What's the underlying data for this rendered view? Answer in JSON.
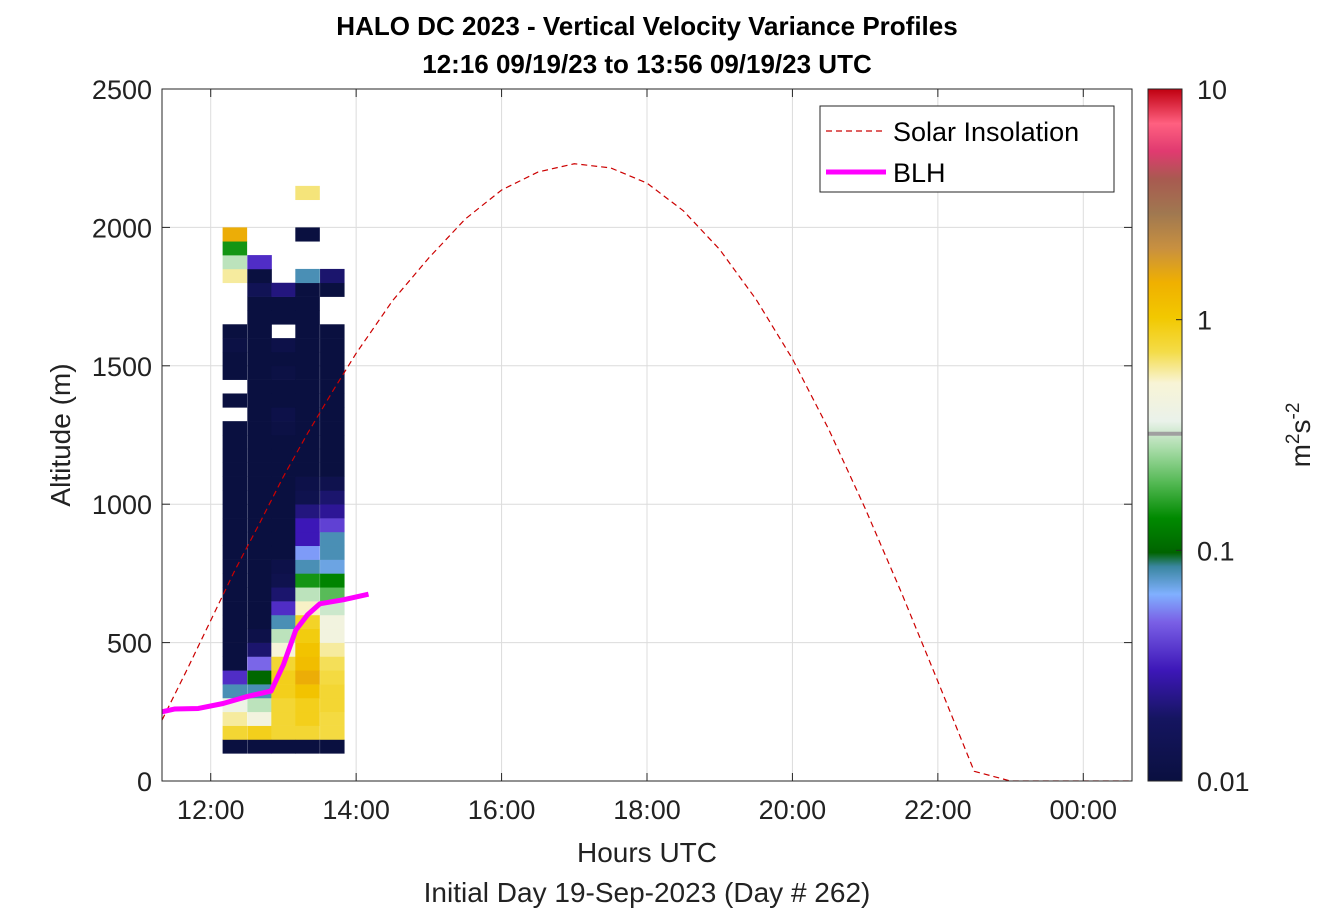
{
  "chart_data": {
    "type": "heatmap",
    "title": "HALO DC 2023 - Vertical Velocity Variance Profiles",
    "subtitle": "12:16 09/19/23 to 13:56 09/19/23  UTC",
    "xlabel": "Hours UTC",
    "xlabel2": "Initial Day 19-Sep-2023 (Day # 262)",
    "ylabel": "Altitude (m)",
    "xlim": [
      11.33,
      24.67
    ],
    "ylim": [
      0,
      2500
    ],
    "x_ticks": [
      12,
      14,
      16,
      18,
      20,
      22,
      24
    ],
    "x_tick_labels": [
      "12:00",
      "14:00",
      "16:00",
      "18:00",
      "20:00",
      "22:00",
      "00:00"
    ],
    "y_ticks": [
      0,
      500,
      1000,
      1500,
      2000,
      2500
    ],
    "y_tick_labels": [
      "0",
      "500",
      "1000",
      "1500",
      "2000",
      "2500"
    ],
    "grid": true,
    "legend_position": "top-right",
    "legend": [
      {
        "label": "Solar Insolation",
        "style": "dashed",
        "color": "#cc0000"
      },
      {
        "label": "BLH",
        "style": "solid",
        "color": "#ff00ff"
      }
    ],
    "colorbar": {
      "label": "m",
      "label_sup1": "2",
      "label_mid": "s",
      "label_sup2": "-2",
      "scale": "log",
      "range": [
        0.01,
        10
      ],
      "ticks": [
        0.01,
        0.1,
        1,
        10
      ],
      "tick_labels": [
        "0.01",
        "0.1",
        "1",
        "10"
      ],
      "colors": [
        [
          0.0,
          "#0a1040"
        ],
        [
          0.09,
          "#151560"
        ],
        [
          0.16,
          "#3d17b8"
        ],
        [
          0.23,
          "#7a60e6"
        ],
        [
          0.27,
          "#80b0ff"
        ],
        [
          0.31,
          "#3a86a0"
        ],
        [
          0.33,
          "#006400"
        ],
        [
          0.38,
          "#008a00"
        ],
        [
          0.43,
          "#52b852"
        ],
        [
          0.48,
          "#a8dca8"
        ],
        [
          0.52,
          "#eaf2ea"
        ],
        [
          0.575,
          "#f8f4d6"
        ],
        [
          0.62,
          "#f4dc48"
        ],
        [
          0.67,
          "#f2c800"
        ],
        [
          0.72,
          "#f0b000"
        ],
        [
          0.77,
          "#c89040"
        ],
        [
          0.82,
          "#a07850"
        ],
        [
          0.87,
          "#a85a50"
        ],
        [
          0.91,
          "#e03a70"
        ],
        [
          0.95,
          "#ff6080"
        ],
        [
          1.0,
          "#c00010"
        ]
      ],
      "marker_value": 0.32,
      "marker_color": "#a0a0a0"
    },
    "heatmap": {
      "time_bins": [
        12.33,
        12.67,
        13.0,
        13.33,
        13.67
      ],
      "bin_width_hours": 0.333,
      "alt_bin_m": 50,
      "columns": [
        {
          "x": 12.33,
          "cells": [
            [
              125,
              0.01
            ],
            [
              175,
              0.8
            ],
            [
              225,
              0.6
            ],
            [
              275,
              0.4
            ],
            [
              325,
              0.08
            ],
            [
              375,
              0.035
            ],
            [
              425,
              0.01
            ],
            [
              475,
              0.01
            ],
            [
              525,
              0.01
            ],
            [
              575,
              0.01
            ],
            [
              625,
              0.01
            ],
            [
              675,
              0.01
            ],
            [
              725,
              0.01
            ],
            [
              775,
              0.01
            ],
            [
              825,
              0.01
            ],
            [
              875,
              0.01
            ],
            [
              925,
              0.01
            ],
            [
              975,
              0.01
            ],
            [
              1025,
              0.01
            ],
            [
              1075,
              0.01
            ],
            [
              1125,
              0.01
            ],
            [
              1175,
              0.01
            ],
            [
              1225,
              0.01
            ],
            [
              1275,
              0.01
            ],
            [
              1375,
              0.01
            ],
            [
              1475,
              0.01
            ],
            [
              1525,
              0.01
            ],
            [
              1575,
              0.011
            ],
            [
              1625,
              0.01
            ],
            [
              1825,
              0.6
            ],
            [
              1875,
              0.3
            ],
            [
              1925,
              0.15
            ],
            [
              1975,
              1.5
            ]
          ]
        },
        {
          "x": 12.67,
          "cells": [
            [
              125,
              0.01
            ],
            [
              175,
              0.9
            ],
            [
              225,
              0.45
            ],
            [
              275,
              0.3
            ],
            [
              325,
              0.08
            ],
            [
              375,
              0.1
            ],
            [
              425,
              0.05
            ],
            [
              475,
              0.02
            ],
            [
              525,
              0.012
            ],
            [
              575,
              0.01
            ],
            [
              625,
              0.01
            ],
            [
              675,
              0.01
            ],
            [
              725,
              0.01
            ],
            [
              775,
              0.01
            ],
            [
              825,
              0.01
            ],
            [
              875,
              0.01
            ],
            [
              925,
              0.01
            ],
            [
              975,
              0.01
            ],
            [
              1025,
              0.01
            ],
            [
              1075,
              0.01
            ],
            [
              1125,
              0.01
            ],
            [
              1175,
              0.01
            ],
            [
              1225,
              0.01
            ],
            [
              1275,
              0.01
            ],
            [
              1325,
              0.01
            ],
            [
              1375,
              0.01
            ],
            [
              1425,
              0.01
            ],
            [
              1475,
              0.01
            ],
            [
              1525,
              0.01
            ],
            [
              1575,
              0.01
            ],
            [
              1625,
              0.01
            ],
            [
              1675,
              0.01
            ],
            [
              1725,
              0.01
            ],
            [
              1775,
              0.015
            ],
            [
              1825,
              0.01
            ],
            [
              1875,
              0.035
            ]
          ]
        },
        {
          "x": 13.0,
          "cells": [
            [
              125,
              0.01
            ],
            [
              175,
              0.8
            ],
            [
              225,
              0.8
            ],
            [
              275,
              0.8
            ],
            [
              325,
              0.9
            ],
            [
              375,
              0.9
            ],
            [
              425,
              0.8
            ],
            [
              475,
              0.5
            ],
            [
              525,
              0.3
            ],
            [
              575,
              0.08
            ],
            [
              625,
              0.035
            ],
            [
              675,
              0.02
            ],
            [
              725,
              0.013
            ],
            [
              775,
              0.012
            ],
            [
              825,
              0.01
            ],
            [
              875,
              0.01
            ],
            [
              925,
              0.01
            ],
            [
              975,
              0.01
            ],
            [
              1025,
              0.01
            ],
            [
              1075,
              0.01
            ],
            [
              1125,
              0.01
            ],
            [
              1175,
              0.01
            ],
            [
              1225,
              0.01
            ],
            [
              1275,
              0.011
            ],
            [
              1325,
              0.012
            ],
            [
              1375,
              0.01
            ],
            [
              1425,
              0.01
            ],
            [
              1475,
              0.011
            ],
            [
              1525,
              0.01
            ],
            [
              1575,
              0.012
            ],
            [
              1675,
              0.01
            ],
            [
              1725,
              0.01
            ],
            [
              1775,
              0.022
            ]
          ]
        },
        {
          "x": 13.33,
          "cells": [
            [
              125,
              0.01
            ],
            [
              175,
              0.8
            ],
            [
              225,
              0.9
            ],
            [
              275,
              0.9
            ],
            [
              325,
              1.1
            ],
            [
              375,
              1.5
            ],
            [
              425,
              1.2
            ],
            [
              475,
              1.1
            ],
            [
              525,
              0.95
            ],
            [
              575,
              0.85
            ],
            [
              625,
              0.55
            ],
            [
              675,
              0.3
            ],
            [
              725,
              0.15
            ],
            [
              775,
              0.08
            ],
            [
              825,
              0.06
            ],
            [
              875,
              0.03
            ],
            [
              925,
              0.03
            ],
            [
              975,
              0.022
            ],
            [
              1025,
              0.013
            ],
            [
              1075,
              0.012
            ],
            [
              1125,
              0.01
            ],
            [
              1175,
              0.01
            ],
            [
              1225,
              0.01
            ],
            [
              1275,
              0.01
            ],
            [
              1325,
              0.01
            ],
            [
              1375,
              0.01
            ],
            [
              1425,
              0.01
            ],
            [
              1475,
              0.01
            ],
            [
              1525,
              0.01
            ],
            [
              1575,
              0.01
            ],
            [
              1625,
              0.01
            ],
            [
              1675,
              0.01
            ],
            [
              1725,
              0.01
            ],
            [
              1775,
              0.01
            ],
            [
              1825,
              0.08
            ],
            [
              1975,
              0.01
            ],
            [
              2125,
              0.65
            ]
          ]
        },
        {
          "x": 13.67,
          "cells": [
            [
              125,
              0.01
            ],
            [
              175,
              0.75
            ],
            [
              225,
              0.75
            ],
            [
              275,
              0.8
            ],
            [
              325,
              0.8
            ],
            [
              375,
              0.75
            ],
            [
              425,
              0.7
            ],
            [
              475,
              0.6
            ],
            [
              525,
              0.45
            ],
            [
              575,
              0.45
            ],
            [
              625,
              0.32
            ],
            [
              675,
              0.2
            ],
            [
              725,
              0.13
            ],
            [
              775,
              0.07
            ],
            [
              825,
              0.08
            ],
            [
              875,
              0.08
            ],
            [
              925,
              0.04
            ],
            [
              975,
              0.025
            ],
            [
              1025,
              0.02
            ],
            [
              1075,
              0.013
            ],
            [
              1125,
              0.01
            ],
            [
              1175,
              0.01
            ],
            [
              1225,
              0.01
            ],
            [
              1275,
              0.01
            ],
            [
              1325,
              0.01
            ],
            [
              1375,
              0.01
            ],
            [
              1425,
              0.01
            ],
            [
              1475,
              0.01
            ],
            [
              1525,
              0.01
            ],
            [
              1575,
              0.01
            ],
            [
              1625,
              0.01
            ],
            [
              1775,
              0.01
            ],
            [
              1825,
              0.02
            ]
          ]
        }
      ]
    },
    "series": [
      {
        "name": "Solar Insolation",
        "type": "line",
        "style": "dashed",
        "color": "#cc0000",
        "x": [
          11.33,
          11.67,
          12.0,
          12.33,
          12.67,
          13.0,
          13.33,
          13.67,
          14.0,
          14.5,
          15.0,
          15.5,
          16.0,
          16.5,
          17.0,
          17.5,
          18.0,
          18.5,
          19.0,
          19.5,
          20.0,
          20.5,
          21.0,
          21.5,
          22.0,
          22.5,
          23.0,
          23.5,
          24.0,
          24.67
        ],
        "y": [
          220,
          400,
          580,
          760,
          930,
          1100,
          1255,
          1405,
          1545,
          1735,
          1890,
          2030,
          2135,
          2200,
          2230,
          2215,
          2160,
          2060,
          1920,
          1740,
          1525,
          1270,
          985,
          680,
          360,
          35,
          0,
          0,
          0,
          0
        ]
      },
      {
        "name": "BLH",
        "type": "line",
        "style": "solid",
        "color": "#ff00ff",
        "x": [
          11.33,
          11.5,
          11.83,
          12.17,
          12.5,
          12.83,
          13.0,
          13.17,
          13.33,
          13.5,
          13.83,
          14.17
        ],
        "y": [
          250,
          260,
          262,
          280,
          305,
          325,
          420,
          545,
          600,
          640,
          655,
          675
        ]
      }
    ]
  }
}
